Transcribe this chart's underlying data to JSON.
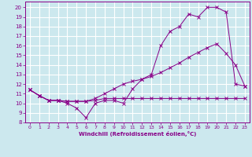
{
  "xlabel": "Windchill (Refroidissement éolien,°C)",
  "bg_color": "#cce8ee",
  "grid_color": "#ffffff",
  "line_color": "#880088",
  "xlim": [
    -0.5,
    23.5
  ],
  "ylim": [
    8,
    20.6
  ],
  "xticks": [
    0,
    1,
    2,
    3,
    4,
    5,
    6,
    7,
    8,
    9,
    10,
    11,
    12,
    13,
    14,
    15,
    16,
    17,
    18,
    19,
    20,
    21,
    22,
    23
  ],
  "yticks": [
    8,
    9,
    10,
    11,
    12,
    13,
    14,
    15,
    16,
    17,
    18,
    19,
    20
  ],
  "curve1_x": [
    0,
    1,
    2,
    3,
    4,
    5,
    6,
    7,
    8,
    9,
    10,
    11,
    12,
    13,
    14,
    15,
    16,
    17,
    18,
    19,
    20,
    21,
    22,
    23
  ],
  "curve1_y": [
    11.4,
    10.8,
    10.3,
    10.3,
    10.0,
    9.5,
    8.5,
    10.0,
    10.3,
    10.3,
    10.0,
    11.5,
    12.5,
    13.0,
    16.0,
    17.5,
    18.0,
    19.3,
    19.0,
    20.0,
    20.0,
    19.5,
    12.0,
    11.8
  ],
  "curve2_x": [
    0,
    1,
    2,
    3,
    4,
    5,
    6,
    7,
    8,
    9,
    10,
    11,
    12,
    13,
    14,
    15,
    16,
    17,
    18,
    19,
    20,
    21,
    22,
    23
  ],
  "curve2_y": [
    11.4,
    10.8,
    10.3,
    10.3,
    10.2,
    10.2,
    10.2,
    10.3,
    10.5,
    10.5,
    10.5,
    10.5,
    10.5,
    10.5,
    10.5,
    10.5,
    10.5,
    10.5,
    10.5,
    10.5,
    10.5,
    10.5,
    10.5,
    10.5
  ],
  "curve3_x": [
    0,
    1,
    2,
    3,
    4,
    5,
    6,
    7,
    8,
    9,
    10,
    11,
    12,
    13,
    14,
    15,
    16,
    17,
    18,
    19,
    20,
    21,
    22,
    23
  ],
  "curve3_y": [
    11.4,
    10.8,
    10.3,
    10.3,
    10.2,
    10.2,
    10.2,
    10.5,
    11.0,
    11.5,
    12.0,
    12.3,
    12.5,
    12.8,
    13.2,
    13.7,
    14.2,
    14.8,
    15.3,
    15.8,
    16.2,
    15.2,
    14.0,
    11.8
  ]
}
